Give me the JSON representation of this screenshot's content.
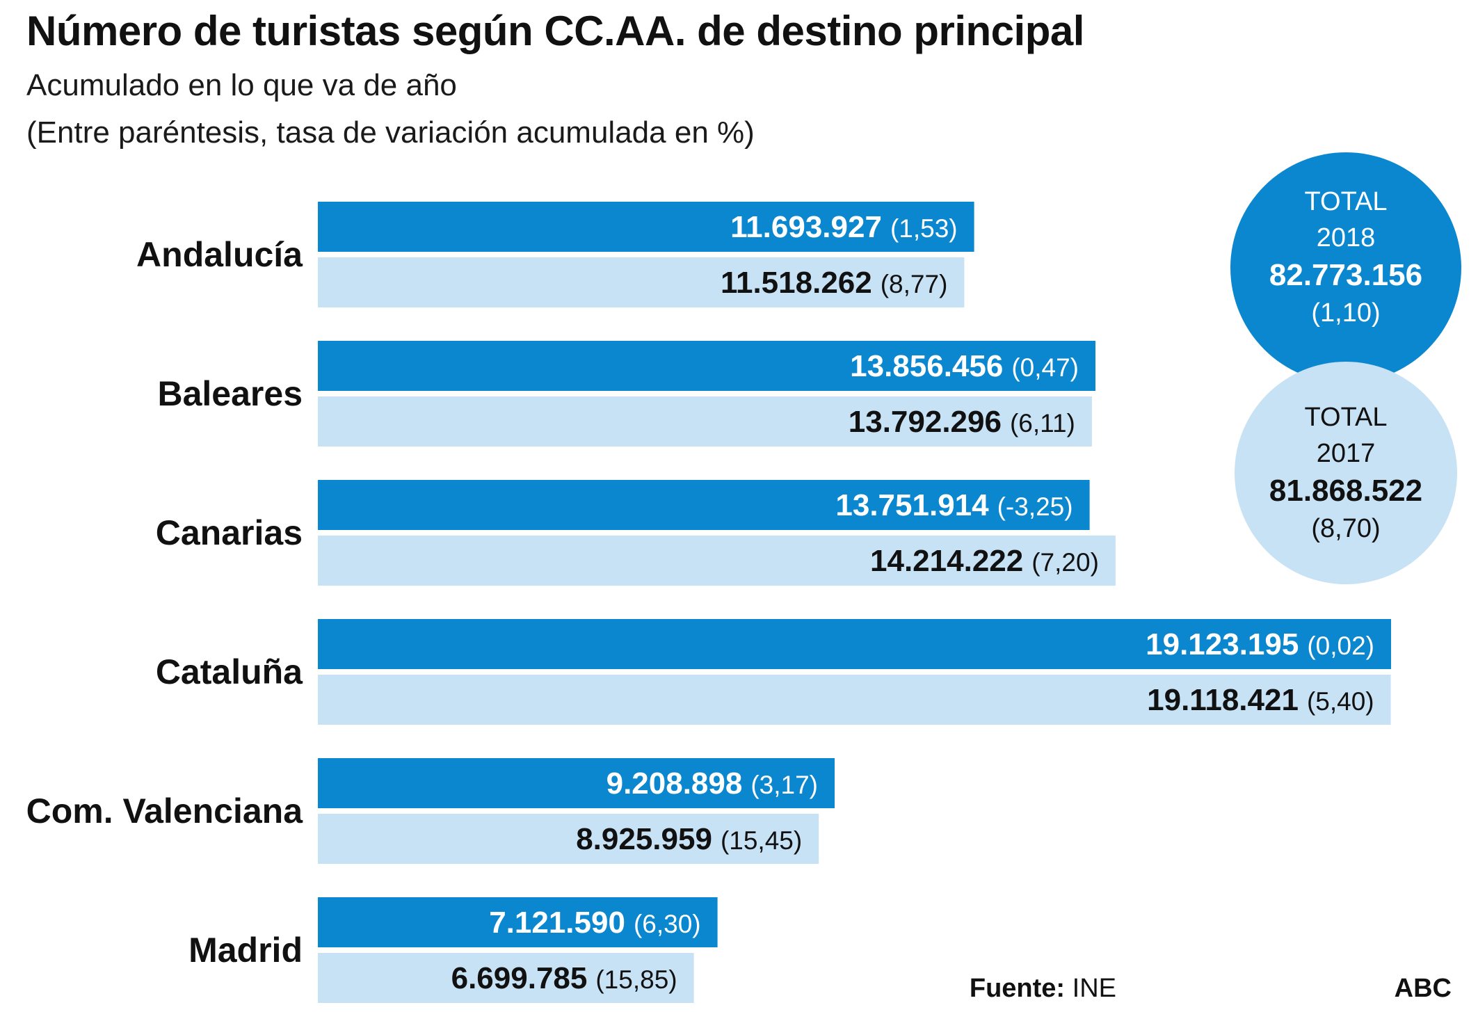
{
  "title": "Número de turistas según CC.AA. de destino principal",
  "subtitle_line1": "Acumulado en lo que va de año",
  "subtitle_line2": "(Entre paréntesis, tasa de variación acumulada en %)",
  "colors": {
    "series_2018": "#0a87cf",
    "series_2017": "#c7e1f5",
    "text_dark": "#111111",
    "text_light": "#ffffff"
  },
  "totals": [
    {
      "label": "TOTAL",
      "year": "2018",
      "value": "82.773.156",
      "rate": "(1,10)"
    },
    {
      "label": "TOTAL",
      "year": "2017",
      "value": "81.868.522",
      "rate": "(8,70)"
    }
  ],
  "source_label": "Fuente:",
  "source_value": "INE",
  "brand": "ABC",
  "chart_data": {
    "type": "bar",
    "orientation": "horizontal",
    "categories": [
      "Andalucía",
      "Baleares",
      "Canarias",
      "Cataluña",
      "Com. Valenciana",
      "Madrid"
    ],
    "series": [
      {
        "values": [
          11693927,
          13856456,
          13751914,
          19123195,
          9208898,
          7121590
        ],
        "value_labels": [
          "11.693.927",
          "13.856.456",
          "13.751.914",
          "19.123.195",
          "9.208.898",
          "7.121.590"
        ],
        "rate_labels": [
          "(1,53)",
          "(0,47)",
          "(-3,25)",
          "(0,02)",
          "(3,17)",
          "(6,30)"
        ],
        "rates": [
          1.53,
          0.47,
          -3.25,
          0.02,
          3.17,
          6.3
        ]
      },
      {
        "values": [
          11518262,
          13792296,
          14214222,
          19118421,
          8925959,
          6699785
        ],
        "value_labels": [
          "11.518.262",
          "13.792.296",
          "14.214.222",
          "19.118.421",
          "8.925.959",
          "6.699.785"
        ],
        "rate_labels": [
          "(8,77)",
          "(6,11)",
          "(7,20)",
          "(5,40)",
          "(15,45)",
          "(15,85)"
        ],
        "rates": [
          8.77,
          6.11,
          7.2,
          5.4,
          15.45,
          15.85
        ]
      }
    ],
    "grid": false,
    "legend": "none"
  }
}
